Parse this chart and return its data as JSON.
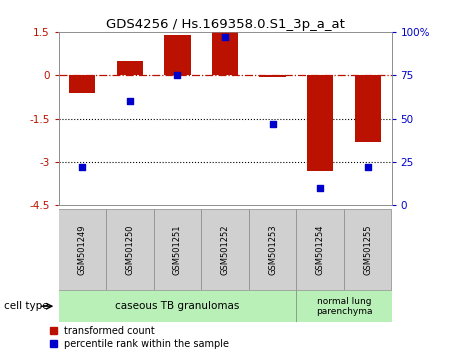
{
  "title": "GDS4256 / Hs.169358.0.S1_3p_a_at",
  "samples": [
    "GSM501249",
    "GSM501250",
    "GSM501251",
    "GSM501252",
    "GSM501253",
    "GSM501254",
    "GSM501255"
  ],
  "red_bars": [
    -0.6,
    0.5,
    1.4,
    1.5,
    -0.05,
    -3.3,
    -2.3
  ],
  "blue_dots": [
    22,
    60,
    75,
    97,
    47,
    10,
    22
  ],
  "ylim_left": [
    -4.5,
    1.5
  ],
  "ylim_right": [
    0,
    100
  ],
  "yticks_left": [
    1.5,
    0,
    -1.5,
    -3,
    -4.5
  ],
  "yticks_right": [
    100,
    75,
    50,
    25,
    0
  ],
  "ytick_labels_right": [
    "100%",
    "75",
    "50",
    "25",
    "0"
  ],
  "hlines_dot": [
    -1.5,
    -3
  ],
  "group1_label": "caseous TB granulomas",
  "group2_label": "normal lung\nparenchyma",
  "group1_color": "#b8f0b8",
  "group2_color": "#b8f0b8",
  "cell_type_label": "cell type",
  "legend_red_label": "transformed count",
  "legend_blue_label": "percentile rank within the sample",
  "bar_color": "#bb1100",
  "dot_color": "#0000cc",
  "bar_width": 0.55,
  "bg_color": "#ffffff",
  "sample_box_color": "#d0d0d0",
  "sample_box_border": "#888888"
}
